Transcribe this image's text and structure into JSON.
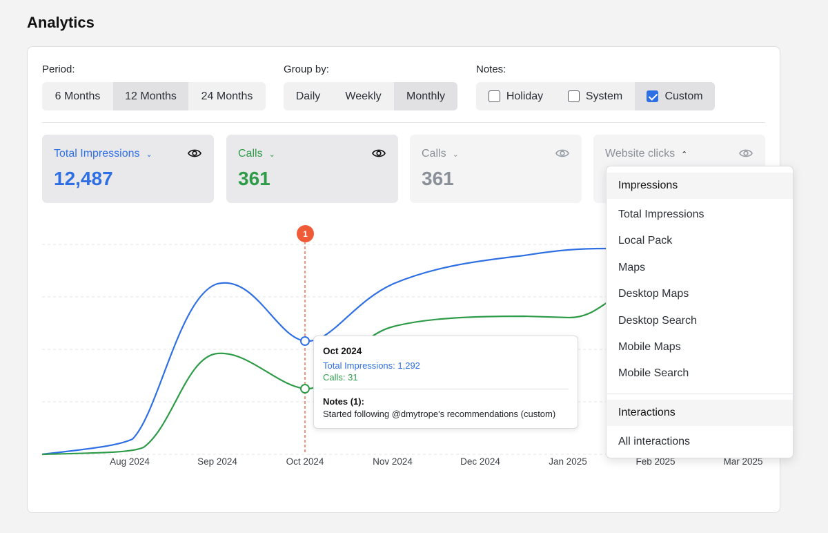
{
  "page": {
    "title": "Analytics"
  },
  "controls": {
    "period": {
      "label": "Period:",
      "options": [
        "6 Months",
        "12 Months",
        "24 Months"
      ],
      "selected": "12 Months"
    },
    "group_by": {
      "label": "Group by:",
      "options": [
        "Daily",
        "Weekly",
        "Monthly"
      ],
      "selected": "Monthly"
    },
    "notes": {
      "label": "Notes:",
      "options": [
        {
          "label": "Holiday",
          "checked": false
        },
        {
          "label": "System",
          "checked": false
        },
        {
          "label": "Custom",
          "checked": true
        }
      ]
    }
  },
  "metrics": [
    {
      "label": "Total Impressions",
      "value": "12,487",
      "color": "#2f6fe4",
      "chevron": "chevron-down-icon",
      "state": "active"
    },
    {
      "label": "Calls",
      "value": "361",
      "color": "#2e9b48",
      "chevron": "chevron-down-icon",
      "state": "active"
    },
    {
      "label": "Calls",
      "value": "361",
      "color": "#8b9098",
      "chevron": "chevron-down-icon",
      "state": "inactive"
    },
    {
      "label": "Website clicks",
      "value": "",
      "color": "#8b9098",
      "chevron": "chevron-up-icon",
      "state": "inactive"
    }
  ],
  "chart": {
    "x_labels": [
      "Aug 2024",
      "Sep 2024",
      "Oct 2024",
      "Nov 2024",
      "Dec 2024",
      "Jan 2025",
      "Feb 2025",
      "Mar 2025"
    ],
    "note_marker": {
      "label": "1",
      "color": "#ef5a37"
    },
    "series_colors": {
      "impressions": "#2f6fe4",
      "calls": "#2e9b48"
    }
  },
  "tooltip": {
    "title": "Oct 2024",
    "line1": "Total Impressions: 1,292",
    "line2": "Calls: 31",
    "notes_title": "Notes (1):",
    "note": "Started following @dmytrope's recommendations (custom)"
  },
  "dropdown": {
    "sections": [
      {
        "header": "Impressions",
        "items": [
          "Total Impressions",
          "Local Pack",
          "Maps",
          "Desktop Maps",
          "Desktop Search",
          "Mobile Maps",
          "Mobile Search"
        ]
      },
      {
        "header": "Interactions",
        "items": [
          "All interactions"
        ]
      }
    ]
  }
}
